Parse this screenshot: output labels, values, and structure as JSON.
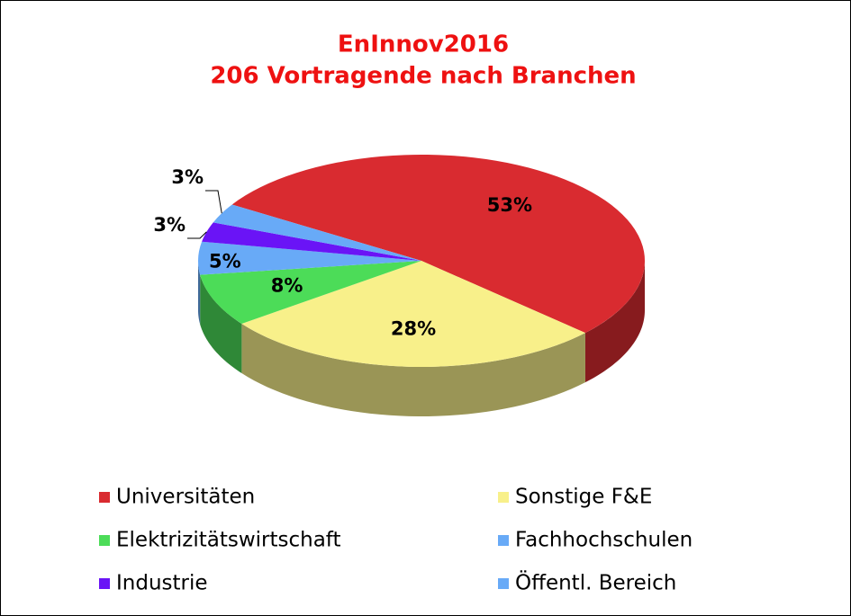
{
  "chart_data": {
    "type": "pie3d",
    "title": "EnInnov2016",
    "subtitle": "206 Vortragende nach Branchen",
    "categories": [
      "Universitäten",
      "Sonstige F&E",
      "Elektrizitätswirtschaft",
      "Fachhochschulen",
      "Industrie",
      "Öffentl. Bereich"
    ],
    "values": [
      53,
      28,
      8,
      5,
      3,
      3
    ],
    "value_labels": [
      "53%",
      "28%",
      "8%",
      "5%",
      "3%",
      "3%"
    ],
    "colors": [
      "#d92b30",
      "#f8f08a",
      "#4cdc58",
      "#68aaf7",
      "#6a14f6",
      "#68aaf7"
    ],
    "legend": "bottom"
  }
}
